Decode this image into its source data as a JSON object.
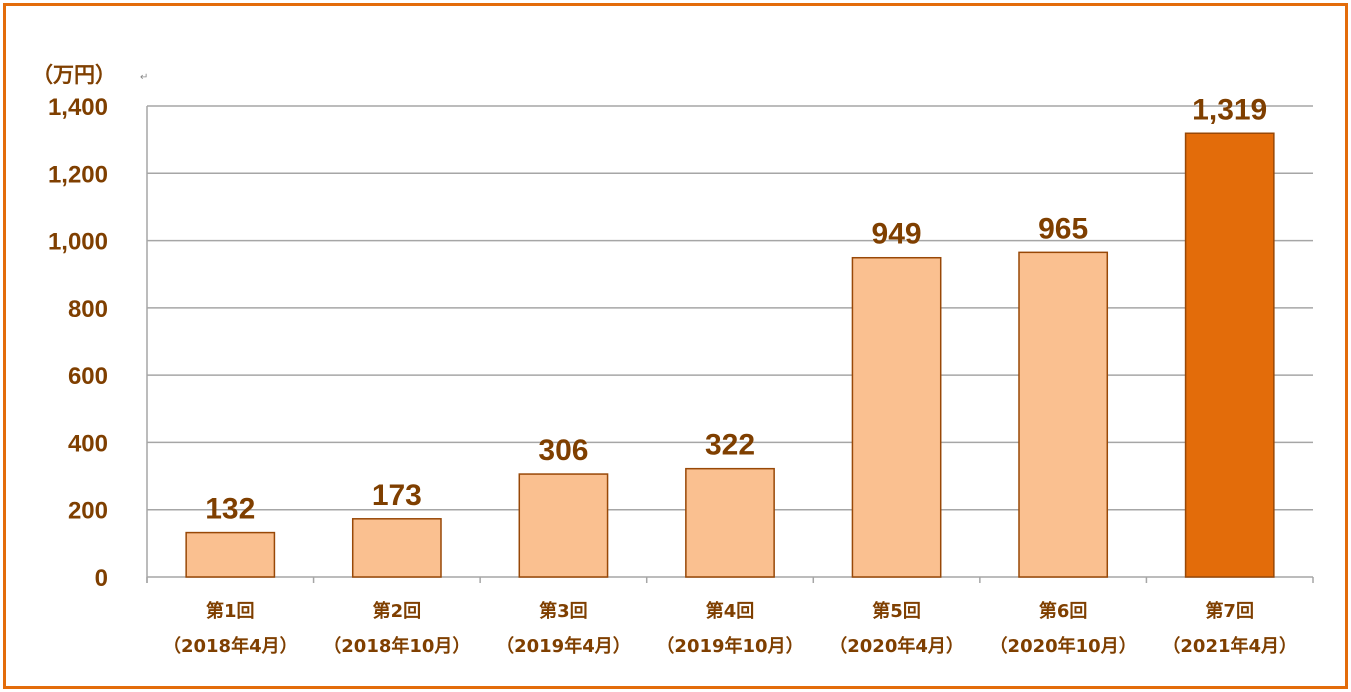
{
  "chart_data": {
    "type": "bar",
    "unit_label": "（万円）",
    "paragraph_mark": "↵",
    "categories": [
      [
        "第1回",
        "（2018年4月）"
      ],
      [
        "第2回",
        "（2018年10月）"
      ],
      [
        "第3回",
        "（2019年4月）"
      ],
      [
        "第4回",
        "（2019年10月）"
      ],
      [
        "第5回",
        "（2020年4月）"
      ],
      [
        "第6回",
        "（2020年10月）"
      ],
      [
        "第7回",
        "（2021年4月）"
      ]
    ],
    "values": [
      132,
      173,
      306,
      322,
      949,
      965,
      1319
    ],
    "value_labels": [
      "132",
      "173",
      "306",
      "322",
      "949",
      "965",
      "1,319"
    ],
    "ylim": [
      0,
      1400
    ],
    "yticks": [
      0,
      200,
      400,
      600,
      800,
      1000,
      1200,
      1400
    ],
    "ytick_labels": [
      "0",
      "200",
      "400",
      "600",
      "800",
      "1,000",
      "1,200",
      "1,400"
    ],
    "grid": true,
    "colors": {
      "bar": "#fac090",
      "highlight_bar": "#e36c0a",
      "bar_edge": "#984807",
      "text": "#7f3f00",
      "grid": "#a6a6a6",
      "frame": "#e36c0a"
    },
    "highlight_index": 6
  }
}
